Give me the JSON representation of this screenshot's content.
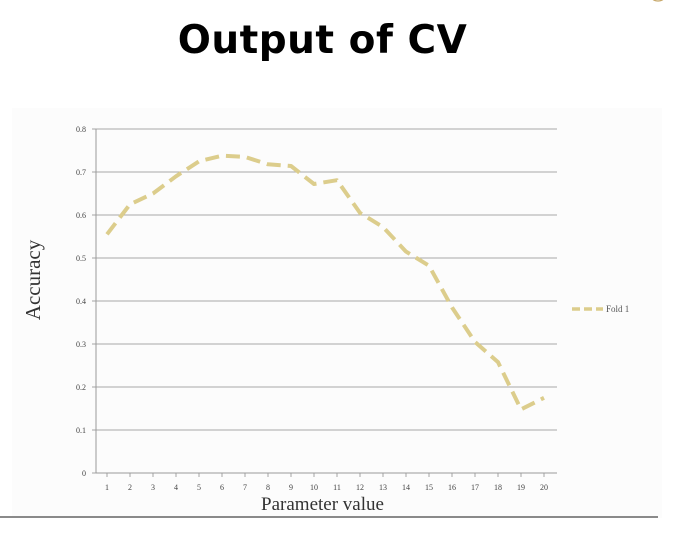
{
  "slide": {
    "title": "Output of CV"
  },
  "chart_data": {
    "type": "line",
    "title": "",
    "xlabel": "Parameter value",
    "ylabel": "Accuracy",
    "x": [
      1,
      2,
      3,
      4,
      5,
      6,
      7,
      8,
      9,
      10,
      11,
      12,
      13,
      14,
      15,
      16,
      17,
      18,
      19,
      20
    ],
    "x_tick_labels": [
      "1",
      "2",
      "3",
      "4",
      "5",
      "6",
      "7",
      "8",
      "9",
      "10",
      "11",
      "12",
      "13",
      "14",
      "15",
      "16",
      "17",
      "18",
      "19",
      "20"
    ],
    "y_tick_labels": [
      "0",
      "0.1",
      "0.2",
      "0.3",
      "0.4",
      "0.5",
      "0.6",
      "0.7",
      "0.8"
    ],
    "y_ticks": [
      0,
      0.1,
      0.2,
      0.3,
      0.4,
      0.5,
      0.6,
      0.7,
      0.8
    ],
    "ylim": [
      0,
      0.8
    ],
    "grid": true,
    "legend_position": "right",
    "series": [
      {
        "name": "Fold 1",
        "color": "#dccd8c",
        "line_style": "dashed",
        "values": [
          0.555,
          0.625,
          0.65,
          0.69,
          0.725,
          0.738,
          0.735,
          0.718,
          0.714,
          0.672,
          0.681,
          0.605,
          0.572,
          0.515,
          0.482,
          0.385,
          0.305,
          0.258,
          0.148,
          0.175
        ]
      }
    ]
  }
}
